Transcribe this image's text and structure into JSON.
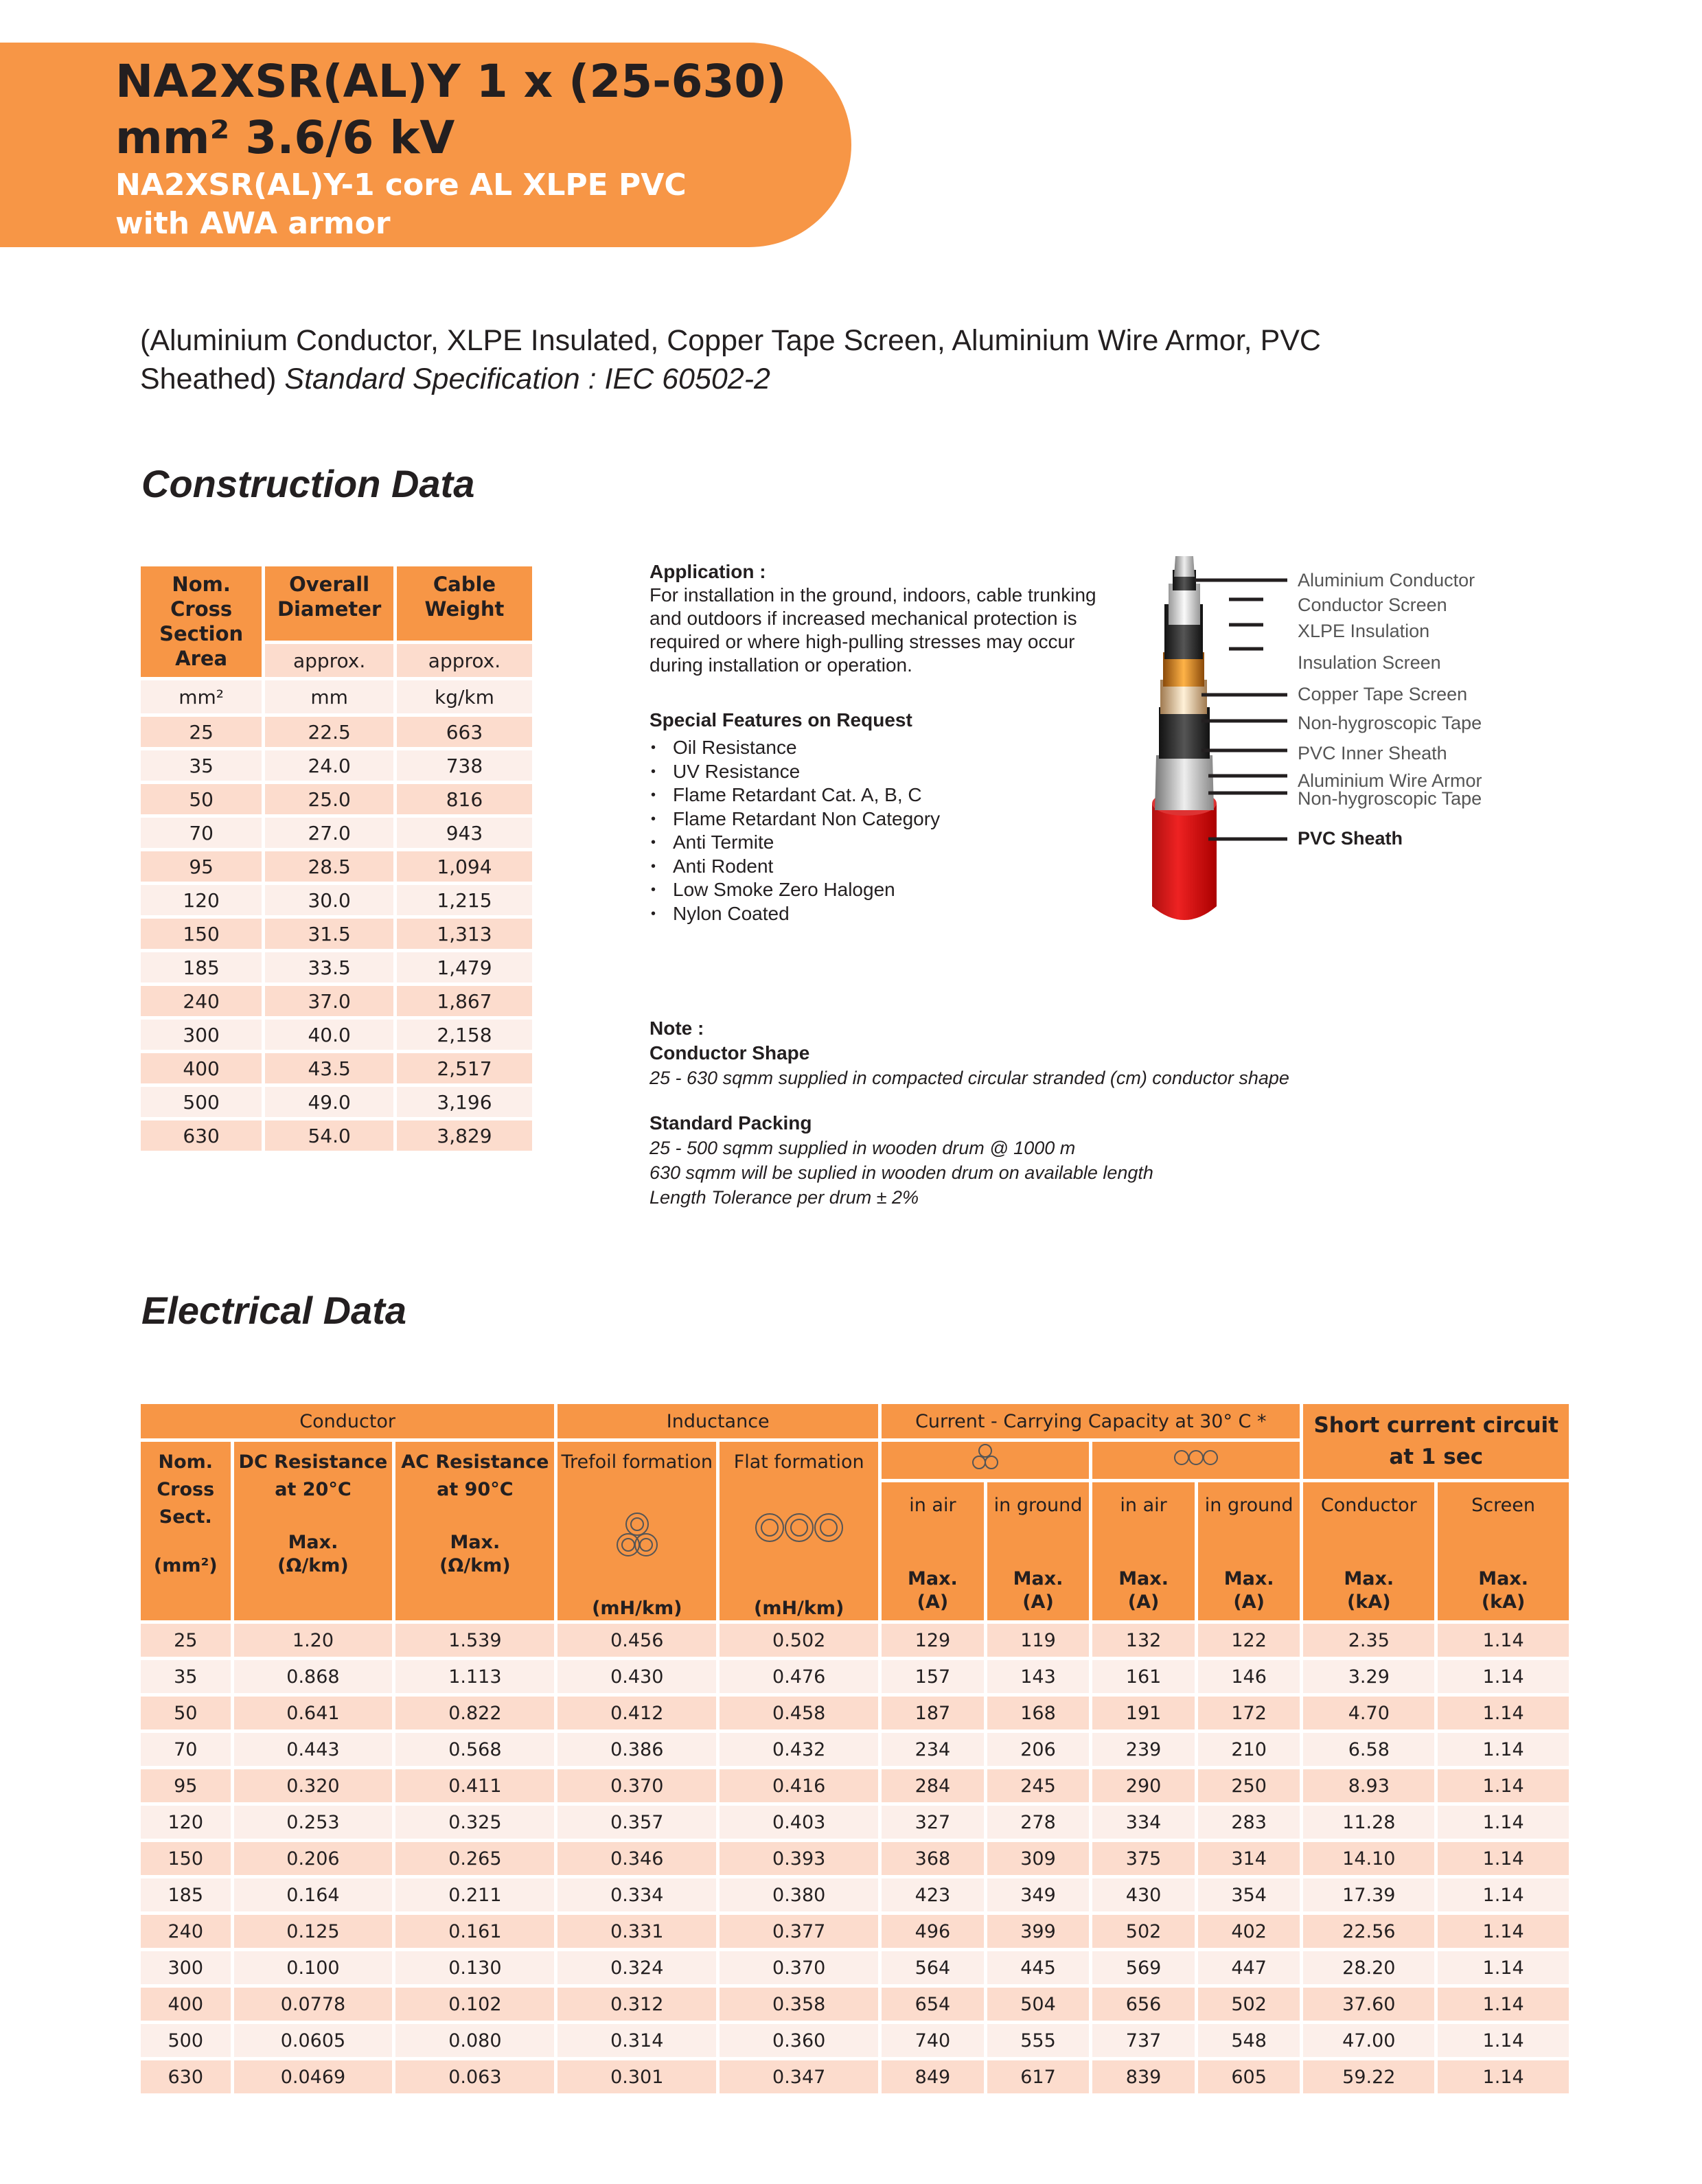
{
  "header": {
    "title_line1": "NA2XSR(AL)Y 1 x (25-630)",
    "title_line2": "mm² 3.6/6 kV",
    "subtitle_line1": "NA2XSR(AL)Y-1 core AL XLPE PVC",
    "subtitle_line2": "with AWA armor",
    "banner_color": "#F79646"
  },
  "description": {
    "text": "(Aluminium Conductor, XLPE Insulated, Copper Tape Screen, Aluminium Wire Armor, PVC Sheathed)",
    "standard": "Standard Specification : IEC 60502-2"
  },
  "construction": {
    "title": "Construction Data",
    "headers": [
      "Nom. Cross Section Area",
      "Overall Diameter",
      "Cable Weight"
    ],
    "sub": [
      "approx.",
      "approx."
    ],
    "units": [
      "mm²",
      "mm",
      "kg/km"
    ],
    "rows": [
      [
        "25",
        "22.5",
        "663"
      ],
      [
        "35",
        "24.0",
        "738"
      ],
      [
        "50",
        "25.0",
        "816"
      ],
      [
        "70",
        "27.0",
        "943"
      ],
      [
        "95",
        "28.5",
        "1,094"
      ],
      [
        "120",
        "30.0",
        "1,215"
      ],
      [
        "150",
        "31.5",
        "1,313"
      ],
      [
        "185",
        "33.5",
        "1,479"
      ],
      [
        "240",
        "37.0",
        "1,867"
      ],
      [
        "300",
        "40.0",
        "2,158"
      ],
      [
        "400",
        "43.5",
        "2,517"
      ],
      [
        "500",
        "49.0",
        "3,196"
      ],
      [
        "630",
        "54.0",
        "3,829"
      ]
    ]
  },
  "application": {
    "title": "Application :",
    "text": "For installation in the ground, indoors, cable trunking and outdoors if increased mechanical protection is required or where high-pulling stresses may occur during installation or operation."
  },
  "features": {
    "title": "Special Features on Request",
    "items": [
      "Oil Resistance",
      "UV Resistance",
      "Flame Retardant Cat. A, B, C",
      "Flame Retardant Non Category",
      "Anti Termite",
      "Anti Rodent",
      "Low Smoke Zero Halogen",
      "Nylon Coated"
    ]
  },
  "cable_labels": [
    "Aluminium Conductor",
    "Conductor Screen",
    "XLPE Insulation",
    "Insulation Screen",
    "Copper Tape Screen",
    "Non-hygroscopic Tape",
    "PVC Inner Sheath",
    "Aluminium Wire Armor",
    "Non-hygroscopic Tape",
    "PVC Sheath"
  ],
  "note": {
    "title": "Note :",
    "shape_title": "Conductor Shape",
    "shape_text": "25 - 630 sqmm supplied in compacted circular stranded (cm) conductor shape",
    "packing_title": "Standard Packing",
    "packing_lines": [
      "25 - 500 sqmm supplied in wooden drum @ 1000 m",
      "630 sqmm will be suplied in wooden drum on available length",
      "Length Tolerance per drum ± 2%"
    ]
  },
  "electrical": {
    "title": "Electrical Data",
    "groups": [
      "Conductor",
      "Inductance",
      "Current - Carrying Capacity at 30° C *",
      "Short current circuit at 1 sec"
    ],
    "columns": [
      {
        "label": "Nom. Cross Sect.",
        "unit": "(mm²)"
      },
      {
        "label": "DC Resistance at 20°C",
        "max": "Max.",
        "unit": "(Ω/km)"
      },
      {
        "label": "AC Resistance at 90°C",
        "max": "Max.",
        "unit": "(Ω/km)"
      },
      {
        "label": "Trefoil formation",
        "unit": "(mH/km)"
      },
      {
        "label": "Flat formation",
        "unit": "(mH/km)"
      },
      {
        "label": "in air",
        "max": "Max.",
        "unit": "(A)"
      },
      {
        "label": "in ground",
        "max": "Max.",
        "unit": "(A)"
      },
      {
        "label": "in air",
        "max": "Max.",
        "unit": "(A)"
      },
      {
        "label": "in ground",
        "max": "Max.",
        "unit": "(A)"
      },
      {
        "label": "Conductor",
        "max": "Max.",
        "unit": "(kA)"
      },
      {
        "label": "Screen",
        "max": "Max.",
        "unit": "(kA)"
      }
    ],
    "rows": [
      [
        "25",
        "1.20",
        "1.539",
        "0.456",
        "0.502",
        "129",
        "119",
        "132",
        "122",
        "2.35",
        "1.14"
      ],
      [
        "35",
        "0.868",
        "1.113",
        "0.430",
        "0.476",
        "157",
        "143",
        "161",
        "146",
        "3.29",
        "1.14"
      ],
      [
        "50",
        "0.641",
        "0.822",
        "0.412",
        "0.458",
        "187",
        "168",
        "191",
        "172",
        "4.70",
        "1.14"
      ],
      [
        "70",
        "0.443",
        "0.568",
        "0.386",
        "0.432",
        "234",
        "206",
        "239",
        "210",
        "6.58",
        "1.14"
      ],
      [
        "95",
        "0.320",
        "0.411",
        "0.370",
        "0.416",
        "284",
        "245",
        "290",
        "250",
        "8.93",
        "1.14"
      ],
      [
        "120",
        "0.253",
        "0.325",
        "0.357",
        "0.403",
        "327",
        "278",
        "334",
        "283",
        "11.28",
        "1.14"
      ],
      [
        "150",
        "0.206",
        "0.265",
        "0.346",
        "0.393",
        "368",
        "309",
        "375",
        "314",
        "14.10",
        "1.14"
      ],
      [
        "185",
        "0.164",
        "0.211",
        "0.334",
        "0.380",
        "423",
        "349",
        "430",
        "354",
        "17.39",
        "1.14"
      ],
      [
        "240",
        "0.125",
        "0.161",
        "0.331",
        "0.377",
        "496",
        "399",
        "502",
        "402",
        "22.56",
        "1.14"
      ],
      [
        "300",
        "0.100",
        "0.130",
        "0.324",
        "0.370",
        "564",
        "445",
        "569",
        "447",
        "28.20",
        "1.14"
      ],
      [
        "400",
        "0.0778",
        "0.102",
        "0.312",
        "0.358",
        "654",
        "504",
        "656",
        "502",
        "37.60",
        "1.14"
      ],
      [
        "500",
        "0.0605",
        "0.080",
        "0.314",
        "0.360",
        "740",
        "555",
        "737",
        "548",
        "47.00",
        "1.14"
      ],
      [
        "630",
        "0.0469",
        "0.063",
        "0.301",
        "0.347",
        "849",
        "617",
        "839",
        "605",
        "59.22",
        "1.14"
      ]
    ]
  }
}
